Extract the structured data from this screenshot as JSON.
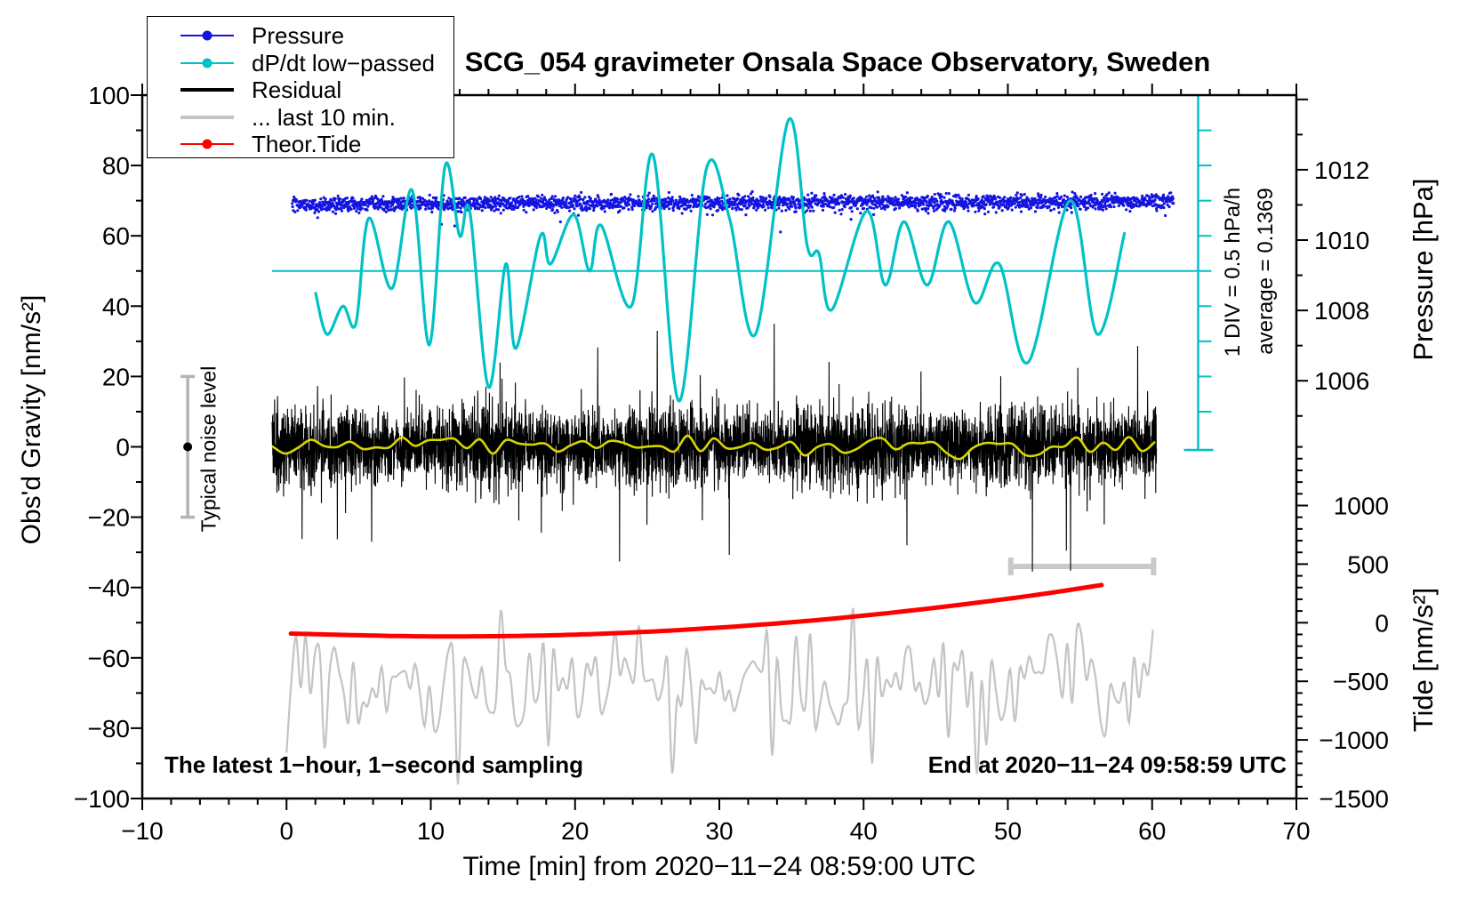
{
  "title": "SCG_054 gravimeter Onsala Space Observatory, Sweden",
  "chart_data": {
    "type": "line",
    "title": "SCG_054 gravimeter Onsala Space Observatory, Sweden",
    "xlabel": "Time [min] from 2020−11−24 08:59:00 UTC",
    "ylabel": "Obs'd Gravity [nm/s²]",
    "y2label_pressure": "Pressure [hPa]",
    "y2label_tide": "Tide [nm/s²]",
    "notes": {
      "left": "The latest 1−hour, 1−second sampling",
      "right": "End at 2020−11−24 09:58:59 UTC"
    },
    "axes": {
      "x": {
        "min": -10,
        "max": 70,
        "major_step": 10,
        "minor_step": 2,
        "tick_labels": [
          {
            "label": "−10",
            "value": -10
          },
          {
            "label": "0",
            "value": 0
          },
          {
            "label": "10",
            "value": 10
          },
          {
            "label": "20",
            "value": 20
          },
          {
            "label": "30",
            "value": 30
          },
          {
            "label": "40",
            "value": 40
          },
          {
            "label": "50",
            "value": 50
          },
          {
            "label": "60",
            "value": 60
          },
          {
            "label": "70",
            "value": 70
          }
        ]
      },
      "y_gravity": {
        "min": -100,
        "max": 100,
        "major_step": 20,
        "minor_step": 10,
        "tick_labels": [
          {
            "label": "−100",
            "value": -100
          },
          {
            "label": "−80",
            "value": -80
          },
          {
            "label": "−60",
            "value": -60
          },
          {
            "label": "−40",
            "value": -40
          },
          {
            "label": "−20",
            "value": -20
          },
          {
            "label": "0",
            "value": 0
          },
          {
            "label": "20",
            "value": 20
          },
          {
            "label": "40",
            "value": 40
          },
          {
            "label": "60",
            "value": 60
          },
          {
            "label": "80",
            "value": 80
          },
          {
            "label": "100",
            "value": 100
          }
        ]
      },
      "y_pressure": {
        "min": 1005,
        "max": 1014,
        "major_step": 2,
        "minor_step": 1,
        "tick_labels": [
          {
            "label": "1006",
            "value": 1006
          },
          {
            "label": "1008",
            "value": 1008
          },
          {
            "label": "1010",
            "value": 1010
          },
          {
            "label": "1012",
            "value": 1012
          }
        ]
      },
      "y_tide": {
        "min": -1500,
        "max": 1500,
        "major_step": 500,
        "minor_step": 100,
        "tick_labels": [
          {
            "label": "−1500",
            "value": -1500
          },
          {
            "label": "−1000",
            "value": -1000
          },
          {
            "label": "−500",
            "value": -500
          },
          {
            "label": "0",
            "value": 0
          },
          {
            "label": "500",
            "value": 500
          },
          {
            "label": "1000",
            "value": 1000
          }
        ]
      }
    },
    "legend": {
      "position": "top-left",
      "items": [
        {
          "name": "pressure",
          "label": "Pressure",
          "color": "#1414e0",
          "marker": "line-dot",
          "thin": true
        },
        {
          "name": "dpdt",
          "label": "dP/dt low−passed",
          "color": "#00c2c6",
          "marker": "line-dot",
          "thin": true
        },
        {
          "name": "residual",
          "label": "Residual",
          "color": "#000000",
          "marker": "line",
          "thin": false
        },
        {
          "name": "last10",
          "label": "... last 10 min.",
          "color": "#c4c4c4",
          "marker": "line",
          "thin": false
        },
        {
          "name": "tide",
          "label": "Theor.Tide",
          "color": "#ff0000",
          "marker": "line-dot",
          "thin": true
        }
      ]
    },
    "scale_bar": {
      "label": "1 DIV = 0.5 hPa/h",
      "average_label": "average = 0.1369",
      "div_hpa_per_h": 0.5,
      "average_hpa_per_h": 0.1369,
      "divisions": 10,
      "zero_reference_gravity_value": 50
    },
    "noise_bar": {
      "label": "Typical noise level",
      "center": 0,
      "half_range": 20,
      "t": -6.85
    },
    "last10min_bar": {
      "t_start": 50.2,
      "t_end": 60.1,
      "gravity_value": -34.0
    },
    "series": {
      "pressure": {
        "legend": "Pressure",
        "color": "#1414e0",
        "style": "dots",
        "mean_hpa": 1011.0,
        "gravity_axis_mean": 69.0,
        "drift_per_min": 0.012,
        "t_range": [
          0.4,
          61.5
        ],
        "n_dots": 2600,
        "jitter_sd": 1.05,
        "seed": 101
      },
      "dpdt_lowpassed": {
        "legend": "dP/dt low−passed",
        "color": "#00c2c6",
        "style": "smooth-line",
        "zero_reference": 50,
        "keypoints_t_v": [
          [
            2.0,
            44
          ],
          [
            2.8,
            32
          ],
          [
            3.9,
            40
          ],
          [
            4.8,
            35
          ],
          [
            5.7,
            65
          ],
          [
            7.3,
            45
          ],
          [
            8.7,
            73
          ],
          [
            9.9,
            29
          ],
          [
            11.0,
            80
          ],
          [
            12.0,
            60
          ],
          [
            12.7,
            67
          ],
          [
            14.0,
            17
          ],
          [
            15.2,
            52
          ],
          [
            15.9,
            28
          ],
          [
            17.6,
            60
          ],
          [
            18.3,
            52
          ],
          [
            19.9,
            66
          ],
          [
            21.0,
            50
          ],
          [
            21.8,
            63
          ],
          [
            23.9,
            40
          ],
          [
            25.4,
            83
          ],
          [
            27.2,
            13
          ],
          [
            29.1,
            79
          ],
          [
            30.7,
            65
          ],
          [
            32.5,
            32
          ],
          [
            34.8,
            93
          ],
          [
            36.1,
            57
          ],
          [
            36.9,
            55
          ],
          [
            37.8,
            39
          ],
          [
            40.2,
            67
          ],
          [
            41.5,
            46
          ],
          [
            42.8,
            64
          ],
          [
            44.4,
            46
          ],
          [
            45.9,
            64
          ],
          [
            47.7,
            41
          ],
          [
            49.4,
            52
          ],
          [
            51.4,
            24
          ],
          [
            54.3,
            70
          ],
          [
            56.2,
            32
          ],
          [
            58.1,
            61
          ]
        ]
      },
      "residual": {
        "legend": "Residual",
        "color": "#000000",
        "style": "noise-line",
        "center": 0,
        "sd": 5.3,
        "t_range": [
          -1,
          60.3
        ],
        "spikes_t_v": [
          [
            5.9,
            -27
          ],
          [
            14.8,
            24
          ],
          [
            25.7,
            33
          ],
          [
            33.8,
            35
          ],
          [
            43.0,
            -28
          ],
          [
            51.7,
            -35.5
          ]
        ],
        "seed": 77
      },
      "residual_smoothed": {
        "color": "#d6d600",
        "style": "smooth-line",
        "center": 0,
        "amplitude": 3.5,
        "t_range": [
          -1,
          60.3
        ],
        "seed": 5
      },
      "last_10_min": {
        "legend": "... last 10 min.",
        "color": "#c4c4c4",
        "style": "smooth-noise-line",
        "center": -66,
        "sd": 8.5,
        "t_range": [
          0,
          60.3
        ],
        "deep_dips_t_v": [
          [
            0.15,
            -87
          ],
          [
            11.9,
            -96
          ],
          [
            47.8,
            -93
          ]
        ],
        "seed": 9
      },
      "theor_tide": {
        "legend": "Theor.Tide",
        "color": "#ff0000",
        "style": "thick-line",
        "keypoints_t_v": [
          [
            0.3,
            -53.1
          ],
          [
            10,
            -53.9
          ],
          [
            20,
            -53.4
          ],
          [
            30,
            -51.4
          ],
          [
            40,
            -48.0
          ],
          [
            50,
            -43.2
          ],
          [
            56.5,
            -39.3
          ]
        ]
      }
    }
  },
  "colors": {
    "frame": "#000000",
    "pressure_blue": "#1414e0",
    "dpdt_cyan": "#00c2c6",
    "residual_black": "#000000",
    "smoothed_yellow": "#d6d600",
    "gray_trace": "#c4c4c4",
    "gray_bar": "#c9c9c9",
    "noise_bar_gray": "#b4b4b4",
    "tide_red": "#ff0000"
  }
}
